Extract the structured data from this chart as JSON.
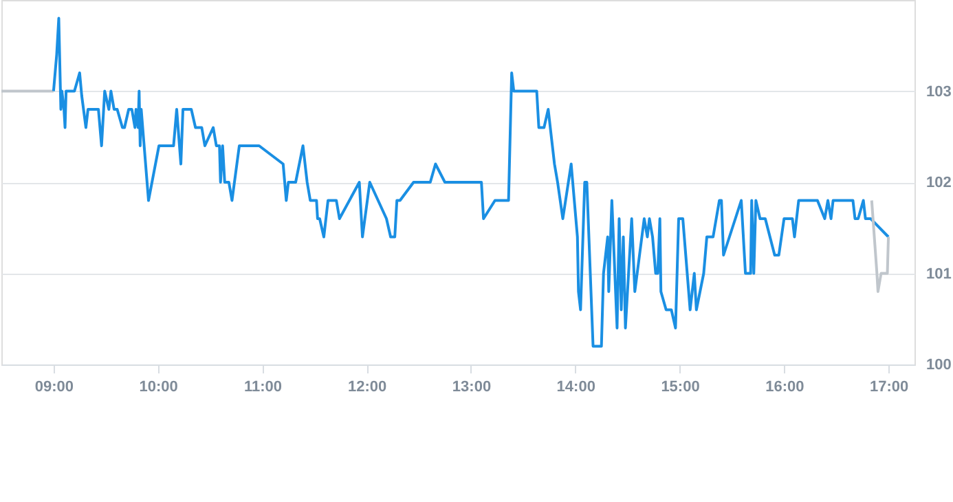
{
  "chart_data": {
    "type": "line",
    "grid": "y",
    "marker": "none",
    "line_style": "solid",
    "xlim": [
      8.5,
      17.25
    ],
    "ylim": [
      100,
      104
    ],
    "xticks": [
      {
        "value": 9,
        "label": "09:00"
      },
      {
        "value": 10,
        "label": "10:00"
      },
      {
        "value": 11,
        "label": "11:00"
      },
      {
        "value": 12,
        "label": "12:00"
      },
      {
        "value": 13,
        "label": "13:00"
      },
      {
        "value": 14,
        "label": "14:00"
      },
      {
        "value": 15,
        "label": "15:00"
      },
      {
        "value": 16,
        "label": "16:00"
      },
      {
        "value": 17,
        "label": "17:00"
      }
    ],
    "yticks": [
      100,
      101,
      102,
      103
    ],
    "series": [
      {
        "color": "#c0c6cc",
        "x": [
          8.5,
          9.0
        ],
        "values": [
          103.0,
          103.0
        ]
      },
      {
        "color": "#1a8fe3",
        "x": [
          9.0,
          9.03,
          9.05,
          9.07,
          9.08,
          9.1,
          9.11,
          9.12,
          9.2,
          9.25,
          9.27,
          9.31,
          9.33,
          9.43,
          9.46,
          9.49,
          9.51,
          9.53,
          9.55,
          9.58,
          9.61,
          9.66,
          9.68,
          9.72,
          9.75,
          9.78,
          9.79,
          9.81,
          9.82,
          9.83,
          9.84,
          9.91,
          10.01,
          10.15,
          10.18,
          10.22,
          10.24,
          10.32,
          10.36,
          10.42,
          10.45,
          10.53,
          10.56,
          10.59,
          10.6,
          10.62,
          10.64,
          10.68,
          10.71,
          10.78,
          10.97,
          11.2,
          11.23,
          11.25,
          11.32,
          11.39,
          11.43,
          11.46,
          11.52,
          11.53,
          11.55,
          11.59,
          11.63,
          11.71,
          11.74,
          11.93,
          11.96,
          12.03,
          12.19,
          12.23,
          12.27,
          12.29,
          12.32,
          12.45,
          12.61,
          12.66,
          12.75,
          13.1,
          13.12,
          13.23,
          13.36,
          13.39,
          13.41,
          13.63,
          13.65,
          13.7,
          13.74,
          13.78,
          13.8,
          13.83,
          13.88,
          13.96,
          14.02,
          14.03,
          14.05,
          14.09,
          14.11,
          14.17,
          14.25,
          14.27,
          14.31,
          14.32,
          14.35,
          14.4,
          14.42,
          14.44,
          14.46,
          14.48,
          14.54,
          14.57,
          14.66,
          14.69,
          14.71,
          14.74,
          14.77,
          14.79,
          14.81,
          14.82,
          14.87,
          14.92,
          14.96,
          14.99,
          15.03,
          15.1,
          15.14,
          15.16,
          15.23,
          15.26,
          15.32,
          15.38,
          15.4,
          15.42,
          15.59,
          15.63,
          15.68,
          15.69,
          15.71,
          15.73,
          15.77,
          15.82,
          15.91,
          15.95,
          16.0,
          16.08,
          16.1,
          16.14,
          16.32,
          16.39,
          16.42,
          16.45,
          16.47,
          16.66,
          16.68,
          16.71,
          16.76,
          16.78,
          16.83,
          17.0
        ],
        "values": [
          103.0,
          103.4,
          103.8,
          102.8,
          103.0,
          102.8,
          102.6,
          103.0,
          103.0,
          103.2,
          102.95,
          102.6,
          102.8,
          102.8,
          102.4,
          103.0,
          102.9,
          102.8,
          103.0,
          102.8,
          102.8,
          102.6,
          102.6,
          102.8,
          102.8,
          102.6,
          102.8,
          102.6,
          103.0,
          102.4,
          102.8,
          101.8,
          102.4,
          102.4,
          102.8,
          102.2,
          102.8,
          102.8,
          102.6,
          102.6,
          102.4,
          102.6,
          102.4,
          102.4,
          102.0,
          102.4,
          102.0,
          102.0,
          101.8,
          102.4,
          102.4,
          102.2,
          101.8,
          102.0,
          102.0,
          102.4,
          102.0,
          101.8,
          101.8,
          101.6,
          101.6,
          101.4,
          101.8,
          101.8,
          101.6,
          102.0,
          101.4,
          102.0,
          101.6,
          101.4,
          101.4,
          101.8,
          101.8,
          102.0,
          102.0,
          102.2,
          102.0,
          102.0,
          101.6,
          101.8,
          101.8,
          103.2,
          103.0,
          103.0,
          102.6,
          102.6,
          102.8,
          102.4,
          102.2,
          102.0,
          101.6,
          102.2,
          101.4,
          100.8,
          100.6,
          102.0,
          102.0,
          100.2,
          100.2,
          101.0,
          101.4,
          100.8,
          101.8,
          100.4,
          101.6,
          100.6,
          101.4,
          100.4,
          101.6,
          100.8,
          101.6,
          101.4,
          101.6,
          101.4,
          101.0,
          101.0,
          101.6,
          100.8,
          100.6,
          100.6,
          100.4,
          101.6,
          101.6,
          100.6,
          101.0,
          100.6,
          101.0,
          101.4,
          101.4,
          101.8,
          101.8,
          101.2,
          101.8,
          101.0,
          101.0,
          101.8,
          101.0,
          101.8,
          101.6,
          101.6,
          101.2,
          101.2,
          101.6,
          101.6,
          101.4,
          101.8,
          101.8,
          101.6,
          101.8,
          101.6,
          101.8,
          101.8,
          101.6,
          101.6,
          101.8,
          101.6,
          101.6,
          101.4
        ]
      },
      {
        "color": "#c0c6cc",
        "x": [
          16.84,
          16.89,
          16.9,
          16.93,
          16.99,
          17.0
        ],
        "values": [
          101.8,
          101.0,
          100.8,
          101.0,
          101.0,
          101.4
        ]
      }
    ]
  }
}
